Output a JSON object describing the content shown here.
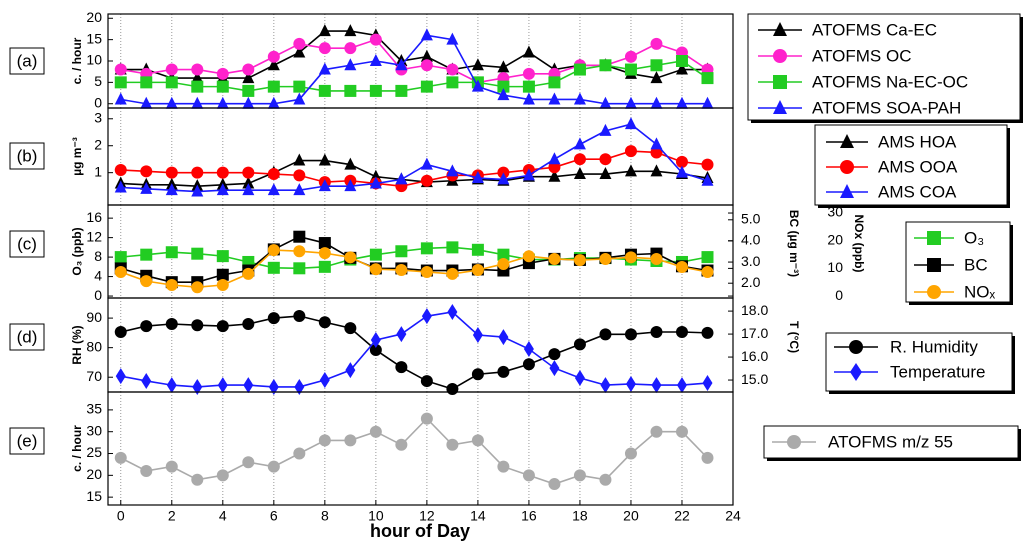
{
  "chart_data": [
    {
      "type": "line",
      "label": "(a)",
      "ylabel": "c. / hour",
      "grid": true,
      "x": [
        0,
        1,
        2,
        3,
        4,
        5,
        6,
        7,
        8,
        9,
        10,
        11,
        12,
        13,
        14,
        15,
        16,
        17,
        18,
        19,
        20,
        21,
        22,
        23
      ],
      "xlim": [
        -0.5,
        24
      ],
      "ylim": [
        -1,
        21
      ],
      "yticks": [
        0,
        5,
        10,
        15,
        20
      ],
      "series": [
        {
          "name": "ATOFMS Ca-EC",
          "color": "#000000",
          "marker": "triangle",
          "values": [
            8,
            8,
            6,
            6,
            6,
            6,
            9,
            12,
            17,
            17,
            16,
            10,
            11,
            8,
            9,
            8.5,
            12,
            8,
            9,
            9,
            7,
            6,
            8,
            8
          ]
        },
        {
          "name": "ATOFMS OC",
          "color": "#ff22cc",
          "marker": "circle",
          "values": [
            8,
            7,
            8,
            8,
            7,
            8,
            11,
            14,
            13,
            13,
            15,
            8,
            9,
            8,
            5,
            6,
            7,
            7,
            9,
            9,
            11,
            14,
            12,
            8
          ]
        },
        {
          "name": "ATOFMS Na-EC-OC",
          "color": "#22cc22",
          "marker": "square",
          "values": [
            5,
            5,
            5,
            4,
            4,
            3,
            4,
            4,
            3,
            3,
            3,
            3,
            4,
            5,
            5,
            4,
            4,
            5,
            8,
            9,
            8,
            9,
            10,
            6
          ]
        },
        {
          "name": "ATOFMS SOA-PAH",
          "color": "#1a1aff",
          "marker": "triangle",
          "values": [
            1,
            0,
            0,
            0,
            0,
            0,
            0,
            1,
            8,
            9,
            10,
            9,
            16,
            15,
            4,
            2,
            1,
            1,
            1,
            0,
            0,
            0,
            0,
            0
          ]
        }
      ]
    },
    {
      "type": "line",
      "label": "(b)",
      "ylabel": "µg m⁻³",
      "grid": true,
      "x": [
        0,
        1,
        2,
        3,
        4,
        5,
        6,
        7,
        8,
        9,
        10,
        11,
        12,
        13,
        14,
        15,
        16,
        17,
        18,
        19,
        20,
        21,
        22,
        23
      ],
      "xlim": [
        -0.5,
        24
      ],
      "ylim": [
        -0.2,
        3.4
      ],
      "yticks": [
        1,
        2,
        3
      ],
      "series": [
        {
          "name": "AMS HOA",
          "color": "#000000",
          "marker": "triangle",
          "values": [
            0.6,
            0.55,
            0.55,
            0.5,
            0.55,
            0.6,
            1.0,
            1.45,
            1.45,
            1.3,
            0.85,
            0.75,
            0.65,
            0.7,
            0.75,
            0.7,
            0.85,
            0.85,
            0.95,
            0.95,
            1.05,
            1.05,
            0.95,
            0.8
          ]
        },
        {
          "name": "AMS OOA",
          "color": "#ff0000",
          "marker": "circle",
          "values": [
            1.1,
            1.05,
            1.0,
            1.0,
            1.0,
            1.0,
            0.95,
            0.9,
            0.65,
            0.7,
            0.6,
            0.5,
            0.7,
            0.9,
            0.9,
            1.0,
            1.1,
            1.2,
            1.5,
            1.5,
            1.8,
            1.75,
            1.4,
            1.3
          ]
        },
        {
          "name": "AMS COA",
          "color": "#1a1aff",
          "marker": "triangle",
          "values": [
            0.45,
            0.4,
            0.35,
            0.3,
            0.35,
            0.35,
            0.35,
            0.35,
            0.5,
            0.5,
            0.6,
            0.75,
            1.3,
            1.05,
            0.8,
            0.75,
            0.9,
            1.5,
            2.05,
            2.55,
            2.8,
            2.05,
            1.0,
            0.7
          ]
        }
      ]
    },
    {
      "type": "line",
      "label": "(c)",
      "ylabel": "O₃ (ppb)",
      "grid": true,
      "x": [
        0,
        1,
        2,
        3,
        4,
        5,
        6,
        7,
        8,
        9,
        10,
        11,
        12,
        13,
        14,
        15,
        16,
        17,
        18,
        19,
        20,
        21,
        22,
        23
      ],
      "xlim": [
        -0.5,
        24
      ],
      "ylim": [
        -0.4,
        18.7
      ],
      "yticks": [
        0,
        4,
        8,
        12,
        16
      ],
      "y2label": "BC (µg m⁻³)",
      "y2lim": [
        1.3,
        5.7
      ],
      "y2ticks": [
        {
          "value": 2,
          "label": "2.0"
        },
        {
          "value": 3,
          "label": "3.0"
        },
        {
          "value": 4,
          "label": "4.0"
        },
        {
          "value": 5,
          "label": "5.0"
        }
      ],
      "y3label": "NOx (ppb)",
      "y3lim": [
        -0.7,
        32.9
      ],
      "y3ticks": [
        0,
        10,
        20,
        30
      ],
      "series": [
        {
          "name": "O₃",
          "color": "#22cc22",
          "marker": "square",
          "values": [
            8,
            8.5,
            9,
            8.7,
            8.2,
            7,
            5.8,
            5.7,
            6,
            7.5,
            8.5,
            9.2,
            9.8,
            10,
            9.5,
            8.5,
            7.5,
            7.5,
            7.8,
            7.8,
            7.5,
            7.2,
            7,
            8
          ]
        },
        {
          "name": "BC",
          "color": "#000000",
          "marker": "square",
          "axis": "y2",
          "values": [
            2.7,
            2.35,
            2.05,
            2.05,
            2.4,
            2.6,
            3.6,
            4.2,
            3.9,
            3.2,
            2.7,
            2.7,
            2.6,
            2.6,
            2.65,
            2.6,
            2.95,
            3.15,
            3.1,
            3.2,
            3.35,
            3.4,
            2.8,
            2.6
          ]
        },
        {
          "name": "NOₓ",
          "color": "#ffa500",
          "marker": "circle",
          "axis": "y3",
          "values": [
            8.7,
            5.4,
            4,
            3.2,
            4,
            8,
            16.6,
            16.2,
            15.5,
            14,
            9.7,
            9.4,
            8.7,
            8,
            9.4,
            11.6,
            14.4,
            13.4,
            13,
            13.4,
            14,
            13.4,
            10.5,
            8.7
          ]
        }
      ]
    },
    {
      "type": "line",
      "label": "(d)",
      "ylabel": "RH (%)",
      "grid": true,
      "x": [
        0,
        1,
        2,
        3,
        4,
        5,
        6,
        7,
        8,
        9,
        10,
        11,
        12,
        13,
        14,
        15,
        16,
        17,
        18,
        19,
        20,
        21,
        22,
        23
      ],
      "xlim": [
        -0.5,
        24
      ],
      "ylim": [
        65,
        96.8
      ],
      "yticks": [
        70,
        80,
        90
      ],
      "y2label": "T (°C)",
      "y2lim": [
        14.48,
        18.57
      ],
      "y2ticks": [
        {
          "value": 15,
          "label": "15.0"
        },
        {
          "value": 16,
          "label": "16.0"
        },
        {
          "value": 17,
          "label": "17.0"
        },
        {
          "value": 18,
          "label": "18.0"
        }
      ],
      "series": [
        {
          "name": "R. Humidity",
          "color": "#000000",
          "marker": "circle",
          "values": [
            85.3,
            87.3,
            88,
            87.6,
            87.3,
            88,
            90,
            90.7,
            88.6,
            86.6,
            79.2,
            73.4,
            68.7,
            66,
            71,
            71.8,
            74.4,
            77.8,
            81.1,
            84.5,
            84.5,
            85.3,
            85.3,
            85
          ]
        },
        {
          "name": "Temperature",
          "color": "#1a1aff",
          "marker": "diamond",
          "axis": "y2",
          "values": [
            15.17,
            14.96,
            14.78,
            14.7,
            14.78,
            14.78,
            14.7,
            14.7,
            15.0,
            15.43,
            16.74,
            17.0,
            17.78,
            17.96,
            16.96,
            16.87,
            16.35,
            15.52,
            15.09,
            14.78,
            14.83,
            14.78,
            14.78,
            14.87
          ]
        }
      ]
    },
    {
      "type": "line",
      "label": "(e)",
      "ylabel": "c. / hour",
      "grid": true,
      "xlabel": "hour of Day",
      "x": [
        0,
        1,
        2,
        3,
        4,
        5,
        6,
        7,
        8,
        9,
        10,
        11,
        12,
        13,
        14,
        15,
        16,
        17,
        18,
        19,
        20,
        21,
        22,
        23
      ],
      "xlim": [
        -0.5,
        24
      ],
      "xticks": [
        0,
        2,
        4,
        6,
        8,
        10,
        12,
        14,
        16,
        18,
        20,
        22,
        24
      ],
      "ylim": [
        13.2,
        39.1
      ],
      "yticks": [
        15,
        20,
        25,
        30,
        35
      ],
      "series": [
        {
          "name": "ATOFMS m/z 55",
          "color": "#aaaaaa",
          "marker": "circle",
          "values": [
            24,
            21,
            22,
            19,
            20,
            23,
            22,
            25,
            28,
            28,
            30,
            27,
            33,
            27,
            28,
            22,
            20,
            18,
            20,
            19,
            25,
            30,
            30,
            24
          ]
        }
      ]
    }
  ]
}
